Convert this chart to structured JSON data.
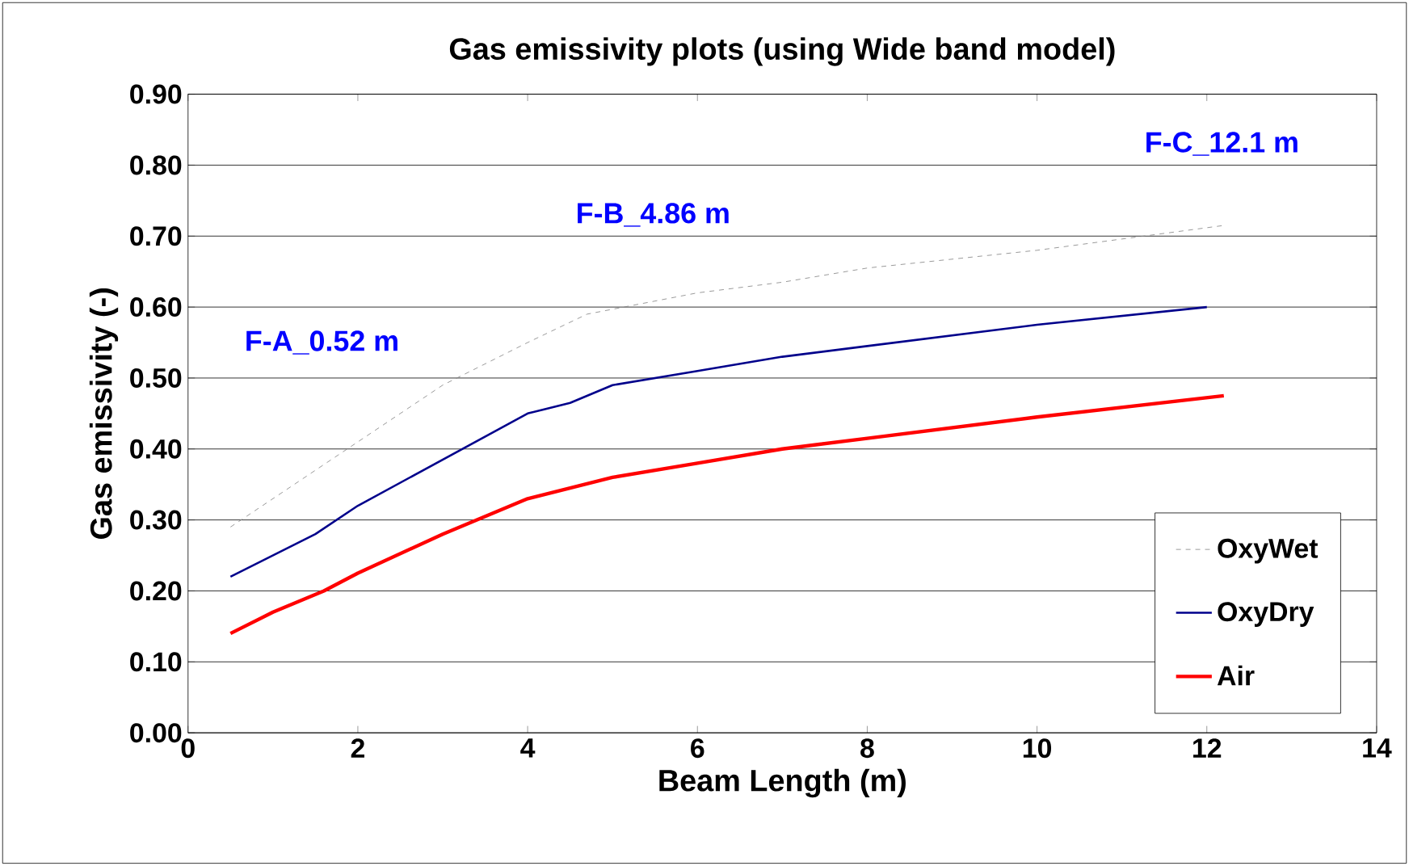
{
  "chart_data": {
    "type": "line",
    "title": "Gas emissivity plots (using Wide band model)",
    "xlabel": "Beam Length (m)",
    "ylabel": "Gas emissivity (-)",
    "xlim": [
      0,
      14
    ],
    "xticks": [
      0,
      2,
      4,
      6,
      8,
      10,
      12,
      14
    ],
    "ylim": [
      0,
      0.9
    ],
    "yticks": [
      {
        "value": 0,
        "label": "0.00"
      },
      {
        "value": 0.1,
        "label": "0.10"
      },
      {
        "value": 0.2,
        "label": "0.20"
      },
      {
        "value": 0.3,
        "label": "0.30"
      },
      {
        "value": 0.4,
        "label": "0.40"
      },
      {
        "value": 0.5,
        "label": "0.50"
      },
      {
        "value": 0.6,
        "label": "0.60"
      },
      {
        "value": 0.7,
        "label": "0.70"
      },
      {
        "value": 0.8,
        "label": "0.80"
      },
      {
        "value": 0.9,
        "label": "0.90"
      }
    ],
    "grid": "y",
    "legend": "bottom right",
    "marker": "none",
    "series": [
      {
        "name": "OxyWet",
        "color": "#808080",
        "line_style": "dashed",
        "x": [
          0.5,
          1,
          2,
          3,
          4,
          4.7,
          6,
          7,
          8,
          10,
          12.2
        ],
        "values": [
          0.29,
          0.33,
          0.41,
          0.49,
          0.55,
          0.59,
          0.62,
          0.635,
          0.655,
          0.68,
          0.715
        ]
      },
      {
        "name": "OxyDry",
        "color": "#00008b",
        "line_style": "solid",
        "x": [
          0.5,
          1.5,
          2,
          3,
          4,
          4.5,
          5,
          6,
          7,
          8,
          10,
          12
        ],
        "values": [
          0.22,
          0.28,
          0.32,
          0.385,
          0.45,
          0.465,
          0.49,
          0.51,
          0.53,
          0.545,
          0.575,
          0.6
        ]
      },
      {
        "name": "Air",
        "color": "#ff0000",
        "line_style": "solid",
        "x": [
          0.5,
          1,
          1.6,
          2,
          3,
          4,
          5,
          6,
          7,
          8,
          10,
          12.2
        ],
        "values": [
          0.14,
          0.17,
          0.2,
          0.225,
          0.28,
          0.33,
          0.36,
          0.38,
          0.4,
          0.415,
          0.445,
          0.475
        ]
      }
    ],
    "annotations": [
      "F-A_0.52 m",
      "F-B_4.86 m",
      "F-C_12.1 m"
    ]
  }
}
